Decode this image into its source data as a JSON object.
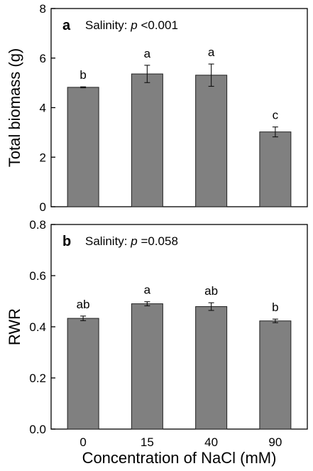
{
  "chart_data": [
    {
      "type": "bar",
      "panel": "a",
      "annotation_prefix": "Salinity: ",
      "annotation_p": "p",
      "annotation_value": " <0.001",
      "ylabel": "Total biomass (g)",
      "xlabel": "",
      "categories": [
        "0",
        "15",
        "40",
        "90"
      ],
      "values": [
        4.82,
        5.36,
        5.31,
        3.02
      ],
      "errors": [
        0.02,
        0.35,
        0.45,
        0.2
      ],
      "letters": [
        "b",
        "a",
        "a",
        "c"
      ],
      "ylim": [
        0,
        8
      ],
      "yticks": [
        "0",
        "2",
        "4",
        "6",
        "8"
      ],
      "ytick_values": [
        0,
        2,
        4,
        6,
        8
      ],
      "show_x_tick_labels": false
    },
    {
      "type": "bar",
      "panel": "b",
      "annotation_prefix": "Salinity: ",
      "annotation_p": "p",
      "annotation_value": " =0.058",
      "ylabel": "RWR",
      "xlabel": "Concentration of NaCl (mM)",
      "categories": [
        "0",
        "15",
        "40",
        "90"
      ],
      "values": [
        0.433,
        0.49,
        0.479,
        0.423
      ],
      "errors": [
        0.009,
        0.008,
        0.015,
        0.007
      ],
      "letters": [
        "ab",
        "a",
        "ab",
        "b"
      ],
      "ylim": [
        0,
        0.8
      ],
      "yticks": [
        "0.0",
        "0.2",
        "0.4",
        "0.6",
        "0.8"
      ],
      "ytick_values": [
        0,
        0.2,
        0.4,
        0.6,
        0.8
      ],
      "show_x_tick_labels": true
    }
  ],
  "colors": {
    "bar_fill": "#808080",
    "bar_edge": "#222222",
    "axis": "#000000"
  }
}
